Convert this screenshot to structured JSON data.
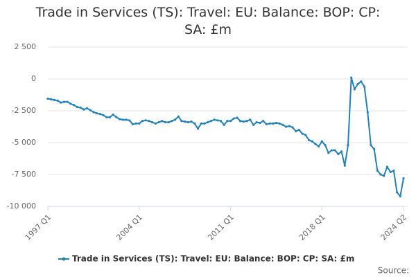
{
  "chart_data": {
    "type": "line",
    "title": "Trade in Services (TS): Travel: EU: Balance: BOP: CP: SA: £m",
    "categories": [
      "1997 Q1",
      null,
      null,
      null,
      null,
      null,
      null,
      null,
      null,
      null,
      null,
      null,
      null,
      null,
      null,
      null,
      null,
      null,
      null,
      null,
      null,
      null,
      null,
      null,
      null,
      null,
      null,
      null,
      "2004 Q1",
      null,
      null,
      null,
      null,
      null,
      null,
      null,
      null,
      null,
      null,
      null,
      null,
      null,
      null,
      null,
      null,
      null,
      null,
      null,
      null,
      null,
      null,
      null,
      null,
      null,
      null,
      null,
      "2011 Q1",
      null,
      null,
      null,
      null,
      null,
      null,
      null,
      null,
      null,
      null,
      null,
      null,
      null,
      null,
      null,
      null,
      null,
      null,
      null,
      null,
      null,
      null,
      null,
      null,
      null,
      null,
      null,
      "2018 Q1",
      null,
      null,
      null,
      null,
      null,
      null,
      null,
      null,
      null,
      null,
      null,
      null,
      null,
      null,
      null,
      null,
      null,
      null,
      null,
      null,
      null,
      null,
      null,
      null,
      "2024 Q2"
    ],
    "series": [
      {
        "name": "Trade in Services (TS): Travel: EU: Balance: BOP: CP: SA: £m",
        "color": "#1f82bf",
        "values": [
          -1550,
          -1600,
          -1650,
          -1700,
          -1850,
          -1800,
          -1800,
          -1950,
          -2050,
          -2200,
          -2250,
          -2400,
          -2300,
          -2450,
          -2600,
          -2700,
          -2750,
          -2850,
          -3000,
          -3000,
          -2800,
          -3000,
          -3150,
          -3200,
          -3200,
          -3250,
          -3550,
          -3500,
          -3500,
          -3300,
          -3250,
          -3300,
          -3400,
          -3500,
          -3400,
          -3300,
          -3400,
          -3400,
          -3300,
          -3200,
          -2950,
          -3300,
          -3350,
          -3400,
          -3350,
          -3500,
          -3900,
          -3500,
          -3500,
          -3400,
          -3300,
          -3200,
          -3250,
          -3300,
          -3600,
          -3300,
          -3300,
          -3100,
          -3050,
          -3300,
          -3350,
          -3300,
          -3200,
          -3600,
          -3400,
          -3450,
          -3300,
          -3550,
          -3500,
          -3500,
          -3450,
          -3500,
          -3600,
          -3750,
          -3700,
          -3800,
          -4100,
          -4000,
          -4300,
          -4400,
          -4800,
          -4900,
          -5100,
          -5300,
          -4900,
          -5200,
          -5800,
          -5600,
          -5600,
          -5900,
          -5700,
          -6800,
          -5200,
          100,
          -800,
          -400,
          -200,
          -600,
          -2600,
          -5200,
          -5500,
          -7200,
          -7500,
          -7600,
          -6900,
          -7300,
          -7200,
          -8900,
          -9200,
          -7800
        ]
      }
    ],
    "ylim": [
      -10000,
      2500
    ],
    "yticks": [
      {
        "value": 2500,
        "label": "2 500"
      },
      0,
      {
        "value": -2500,
        "label": "-2 500"
      },
      {
        "value": -5000,
        "label": "-5 000"
      },
      {
        "value": -7500,
        "label": "-7 500"
      },
      {
        "value": -10000,
        "label": "-10 000"
      }
    ],
    "grid": true,
    "source": "Source:"
  }
}
